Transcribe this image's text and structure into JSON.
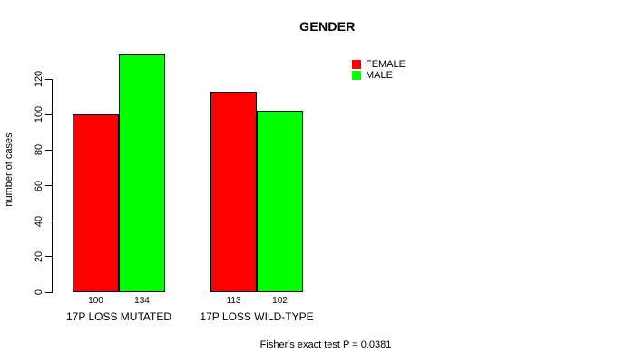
{
  "title": "GENDER",
  "ylabel": "number of cases",
  "footer": "Fisher's exact test P = 0.0381",
  "legend": [
    {
      "label": "FEMALE",
      "color": "#ff0000"
    },
    {
      "label": "MALE",
      "color": "#00ff00"
    }
  ],
  "chart_data": {
    "type": "bar",
    "title": "GENDER",
    "ylabel": "number of cases",
    "xlabel": "",
    "categories": [
      "17P LOSS MUTATED",
      "17P LOSS WILD-TYPE"
    ],
    "series": [
      {
        "name": "FEMALE",
        "color": "#ff0000",
        "values": [
          100,
          113
        ]
      },
      {
        "name": "MALE",
        "color": "#00ff00",
        "values": [
          134,
          102
        ]
      }
    ],
    "bar_value_labels": [
      [
        "100",
        "134"
      ],
      [
        "113",
        "102"
      ]
    ],
    "yticks": [
      0,
      20,
      40,
      60,
      80,
      100,
      120
    ],
    "ylim": [
      0,
      120
    ],
    "grid": false,
    "legend_position": "top-right",
    "annotation": "Fisher's exact test P = 0.0381"
  }
}
